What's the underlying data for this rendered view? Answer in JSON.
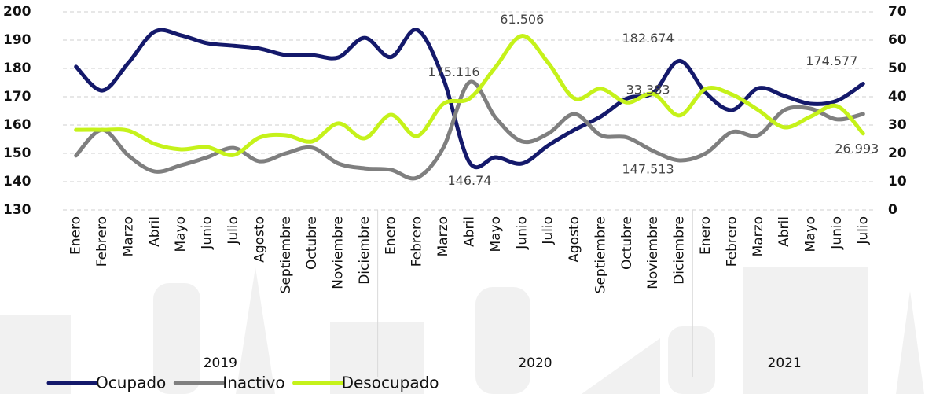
{
  "chart_data": {
    "type": "line",
    "categories": [
      "Enero",
      "Febrero",
      "Marzo",
      "Abril",
      "Mayo",
      "Junio",
      "Julio",
      "Agosto",
      "Septiembre",
      "Octubre",
      "Noviembre",
      "Diciembre",
      "Enero",
      "Febrero",
      "Marzo",
      "Abril",
      "Mayo",
      "Junio",
      "Julio",
      "Agosto",
      "Septiembre",
      "Octubre",
      "Noviembre",
      "Diciembre",
      "Enero",
      "Febrero",
      "Marzo",
      "Abril",
      "Mayo",
      "Junio",
      "Julio"
    ],
    "year_groups": [
      {
        "label": "2019",
        "size": 12
      },
      {
        "label": "2020",
        "size": 12
      },
      {
        "label": "2021",
        "size": 7
      }
    ],
    "series": [
      {
        "name": "Ocupado",
        "color": "#14196b",
        "axis": "y",
        "label_indices": [
          15,
          23,
          30
        ],
        "values": [
          180.6,
          172.2,
          182,
          193,
          191.7,
          188.9,
          188,
          187,
          184.7,
          184.7,
          183.9,
          190.8,
          184,
          193.6,
          176.4,
          146.74,
          148.6,
          146.4,
          152.8,
          158.3,
          163,
          169.4,
          171.4,
          182.674,
          171.4,
          165.3,
          173,
          170.3,
          167.5,
          168.6,
          174.577
        ]
      },
      {
        "name": "Inactivo",
        "color": "#7f7f7f",
        "axis": "y",
        "label_indices": [
          15,
          23
        ],
        "values": [
          149.2,
          158.3,
          149.2,
          143.6,
          145.8,
          148.6,
          151.9,
          147.2,
          150,
          152,
          146.4,
          144.7,
          144.2,
          141.4,
          152,
          175.116,
          162.5,
          154.2,
          157,
          163.9,
          156.4,
          155.6,
          150.8,
          147.513,
          150,
          157.5,
          156.4,
          165.3,
          165.8,
          162,
          163.9
        ]
      },
      {
        "name": "Desocupado",
        "color": "#c5f21a",
        "axis": "y2",
        "label_indices": [
          17,
          23,
          30
        ],
        "values": [
          28.3,
          28.3,
          28,
          23.3,
          21.4,
          22.2,
          19.4,
          25.6,
          26.4,
          24.2,
          30.6,
          25.3,
          33.6,
          26.1,
          37.5,
          39.4,
          50.6,
          61.506,
          51.9,
          39.4,
          42.8,
          38,
          41,
          33.383,
          42.8,
          40.8,
          35.3,
          29.2,
          33,
          36.7,
          26.993
        ]
      }
    ],
    "ylim": [
      130,
      200
    ],
    "yticks": [
      130,
      140,
      150,
      160,
      170,
      180,
      190,
      200
    ],
    "y2lim": [
      0,
      70
    ],
    "y2ticks": [
      0,
      10,
      20,
      30,
      40,
      50,
      60,
      70
    ],
    "grid": true,
    "legend": "bottom-left"
  }
}
